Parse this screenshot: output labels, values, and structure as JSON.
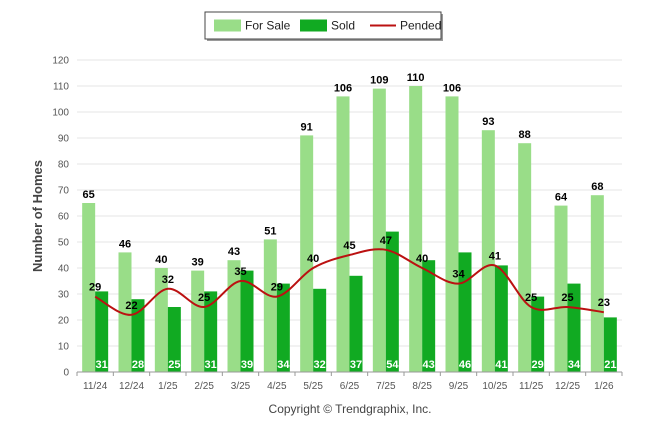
{
  "chart_data": {
    "type": "bar",
    "title": "",
    "xlabel": "",
    "ylabel": "Number of Homes",
    "ylim": [
      0,
      120
    ],
    "yticks": [
      "0",
      "10",
      "20",
      "30",
      "40",
      "50",
      "60",
      "70",
      "80",
      "90",
      "100",
      "110",
      "120"
    ],
    "grid": true,
    "legend_position": "top-center",
    "categories": [
      "11/24",
      "12/24",
      "1/25",
      "2/25",
      "3/25",
      "4/25",
      "5/25",
      "6/25",
      "7/25",
      "8/25",
      "9/25",
      "10/25",
      "11/25",
      "12/25",
      "1/26"
    ],
    "series": [
      {
        "name": "For Sale",
        "type": "bar",
        "color": "#99dd88",
        "values": [
          65,
          46,
          40,
          39,
          43,
          51,
          91,
          106,
          109,
          110,
          106,
          93,
          88,
          64,
          68
        ]
      },
      {
        "name": "Sold",
        "type": "bar",
        "color": "#11aa22",
        "values": [
          31,
          28,
          25,
          31,
          39,
          34,
          32,
          37,
          54,
          43,
          46,
          41,
          29,
          34,
          21
        ]
      },
      {
        "name": "Pended",
        "type": "line",
        "color": "#bb1111",
        "values": [
          29,
          22,
          32,
          25,
          35,
          29,
          40,
          45,
          47,
          40,
          34,
          41,
          25,
          25,
          23
        ]
      }
    ]
  },
  "footer": {
    "copyright": "Copyright © Trendgraphix, Inc."
  }
}
